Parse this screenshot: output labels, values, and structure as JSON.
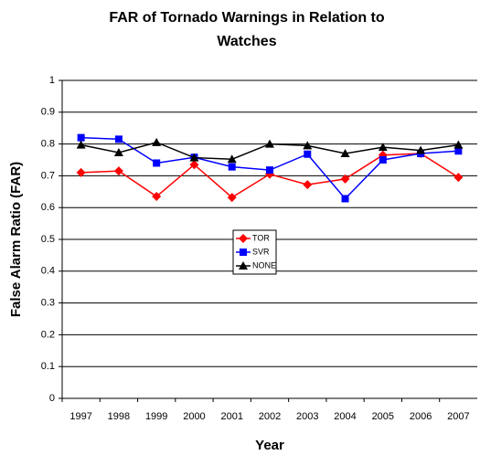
{
  "chart_data": {
    "type": "line",
    "title": "FAR of Tornado Warnings in Relation to Watches",
    "x_label": "Year",
    "y_label": "False Alarm Ratio (FAR)",
    "categories": [
      "1997",
      "1998",
      "1999",
      "2000",
      "2001",
      "2002",
      "2003",
      "2004",
      "2005",
      "2006",
      "2007"
    ],
    "series": [
      {
        "name": "TOR",
        "color": "#ff0000",
        "marker": "diamond",
        "values": [
          0.71,
          0.715,
          0.635,
          0.735,
          0.632,
          0.705,
          0.672,
          0.69,
          0.765,
          0.77,
          0.695
        ]
      },
      {
        "name": "SVR",
        "color": "#0000ff",
        "marker": "square",
        "values": [
          0.82,
          0.815,
          0.74,
          0.758,
          0.728,
          0.718,
          0.768,
          0.628,
          0.75,
          0.77,
          0.778
        ]
      },
      {
        "name": "NONE",
        "color": "#000000",
        "marker": "triangle",
        "values": [
          0.797,
          0.773,
          0.805,
          0.757,
          0.752,
          0.8,
          0.795,
          0.77,
          0.79,
          0.78,
          0.797
        ]
      }
    ],
    "ylim": [
      0,
      1
    ],
    "yticks": [
      0,
      0.1,
      0.2,
      0.3,
      0.4,
      0.5,
      0.6,
      0.7,
      0.8,
      0.9,
      1
    ],
    "grid": true
  }
}
